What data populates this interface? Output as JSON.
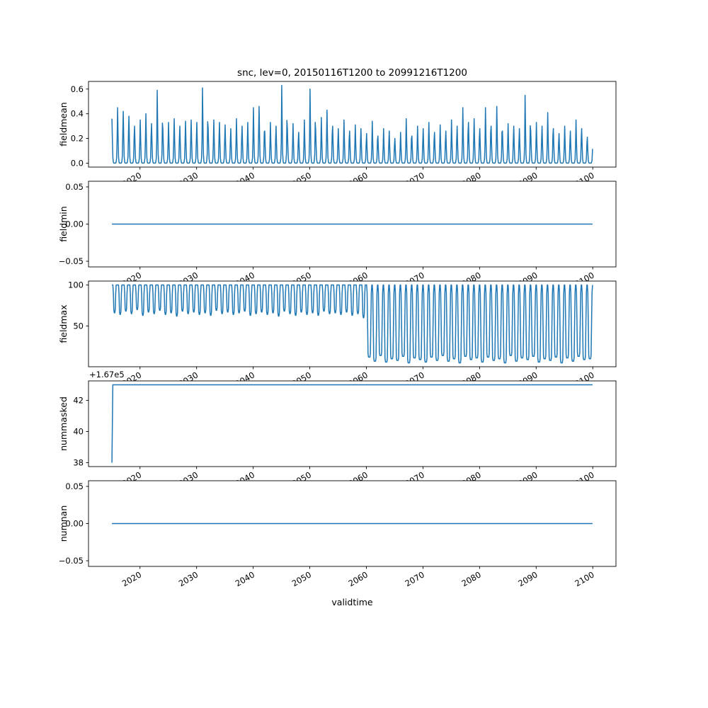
{
  "figure": {
    "title": "snc, lev=0, 20150116T1200 to 20991216T1200",
    "xlabel": "validtime",
    "bg_color": "#ffffff",
    "line_color": "#1f77b4",
    "frame_color": "#000000",
    "xlim": [
      2010.9,
      2104.1
    ],
    "xticks": [
      {
        "v": 2020,
        "label": "2020"
      },
      {
        "v": 2030,
        "label": "2030"
      },
      {
        "v": 2040,
        "label": "2040"
      },
      {
        "v": 2050,
        "label": "2050"
      },
      {
        "v": 2060,
        "label": "2060"
      },
      {
        "v": 2070,
        "label": "2070"
      },
      {
        "v": 2080,
        "label": "2080"
      },
      {
        "v": 2090,
        "label": "2090"
      },
      {
        "v": 2100,
        "label": "2100"
      }
    ]
  },
  "chart_data": [
    {
      "type": "line",
      "name": "fieldmean",
      "ylabel": "fieldmean",
      "ylim": [
        -0.032,
        0.662
      ],
      "yticks": [
        {
          "v": 0.0,
          "label": "0.0"
        },
        {
          "v": 0.2,
          "label": "0.2"
        },
        {
          "v": 0.4,
          "label": "0.4"
        },
        {
          "v": 0.6,
          "label": "0.6"
        }
      ],
      "gen": {
        "kind": "seasonal_peaks",
        "start_year": 2015,
        "shape": [
          1.0,
          0.5,
          0.12,
          0.02,
          0.0,
          0.0,
          0.0,
          0.0,
          0.0,
          0.03,
          0.12,
          0.55
        ],
        "peaks": [
          0.36,
          0.45,
          0.42,
          0.38,
          0.3,
          0.35,
          0.4,
          0.32,
          0.59,
          0.28,
          0.33,
          0.36,
          0.3,
          0.34,
          0.35,
          0.33,
          0.61,
          0.29,
          0.35,
          0.33,
          0.31,
          0.28,
          0.36,
          0.3,
          0.33,
          0.45,
          0.46,
          0.26,
          0.33,
          0.3,
          0.63,
          0.28,
          0.32,
          0.25,
          0.35,
          0.6,
          0.27,
          0.37,
          0.43,
          0.3,
          0.28,
          0.35,
          0.26,
          0.31,
          0.28,
          0.24,
          0.34,
          0.22,
          0.28,
          0.26,
          0.2,
          0.25,
          0.36,
          0.22,
          0.3,
          0.28,
          0.33,
          0.25,
          0.31,
          0.26,
          0.35,
          0.3,
          0.45,
          0.33,
          0.36,
          0.28,
          0.45,
          0.3,
          0.46,
          0.26,
          0.32,
          0.3,
          0.28,
          0.55,
          0.26,
          0.33,
          0.3,
          0.41,
          0.28,
          0.24,
          0.3,
          0.26,
          0.35,
          0.28,
          0.21
        ]
      }
    },
    {
      "type": "line",
      "name": "fieldmin",
      "ylabel": "fieldmin",
      "ylim": [
        -0.0576,
        0.0576
      ],
      "yticks": [
        {
          "v": -0.05,
          "label": "−0.05"
        },
        {
          "v": 0.0,
          "label": "0.00"
        },
        {
          "v": 0.05,
          "label": "0.05"
        }
      ],
      "gen": {
        "kind": "constant",
        "value": 0.0,
        "x_from": 2015.04,
        "x_to": 2099.96
      }
    },
    {
      "type": "line",
      "name": "fieldmax",
      "ylabel": "fieldmax",
      "ylim": [
        0.25,
        104.75
      ],
      "yticks": [
        {
          "v": 50,
          "label": "50"
        },
        {
          "v": 100,
          "label": "100"
        }
      ],
      "gen": {
        "kind": "seasonal_dip",
        "start_year": 2015,
        "high": 100,
        "transition_year": 2060,
        "shape_before": [
          0,
          0,
          0,
          0.3,
          0.9,
          1,
          1,
          0.9,
          0.3,
          0,
          0,
          0
        ],
        "shape_after": [
          0,
          0.1,
          0.5,
          0.95,
          1,
          1,
          1,
          1,
          0.95,
          0.5,
          0.1,
          0
        ],
        "lows": [
          66,
          64,
          68,
          65,
          70,
          63,
          67,
          65,
          69,
          64,
          66,
          62,
          68,
          65,
          67,
          64,
          66,
          63,
          69,
          65,
          67,
          64,
          66,
          68,
          63,
          65,
          67,
          64,
          66,
          62,
          68,
          65,
          63,
          67,
          64,
          66,
          63,
          68,
          65,
          66,
          64,
          67,
          63,
          65,
          60,
          12,
          7,
          14,
          6,
          10,
          8,
          13,
          5,
          11,
          9,
          6,
          12,
          8,
          14,
          7,
          10,
          5,
          13,
          9,
          11,
          6,
          12,
          8,
          10,
          5,
          14,
          7,
          11,
          9,
          13,
          6,
          10,
          8,
          12,
          5,
          11,
          7,
          13,
          9,
          10
        ]
      }
    },
    {
      "type": "line",
      "name": "nummasked",
      "ylabel": "nummasked",
      "offset_text": "+1.67e5",
      "ylim": [
        37.75,
        43.25
      ],
      "yticks": [
        {
          "v": 38,
          "label": "38"
        },
        {
          "v": 40,
          "label": "40"
        },
        {
          "v": 42,
          "label": "42"
        }
      ],
      "gen": {
        "kind": "segments",
        "points": [
          [
            2015.04,
            38
          ],
          [
            2015.2,
            43
          ],
          [
            2099.96,
            43
          ]
        ]
      }
    },
    {
      "type": "line",
      "name": "numnan",
      "ylabel": "numnan",
      "ylim": [
        -0.0576,
        0.0576
      ],
      "yticks": [
        {
          "v": -0.05,
          "label": "−0.05"
        },
        {
          "v": 0.0,
          "label": "0.00"
        },
        {
          "v": 0.05,
          "label": "0.05"
        }
      ],
      "gen": {
        "kind": "constant",
        "value": 0.0,
        "x_from": 2015.04,
        "x_to": 2099.96
      }
    }
  ]
}
